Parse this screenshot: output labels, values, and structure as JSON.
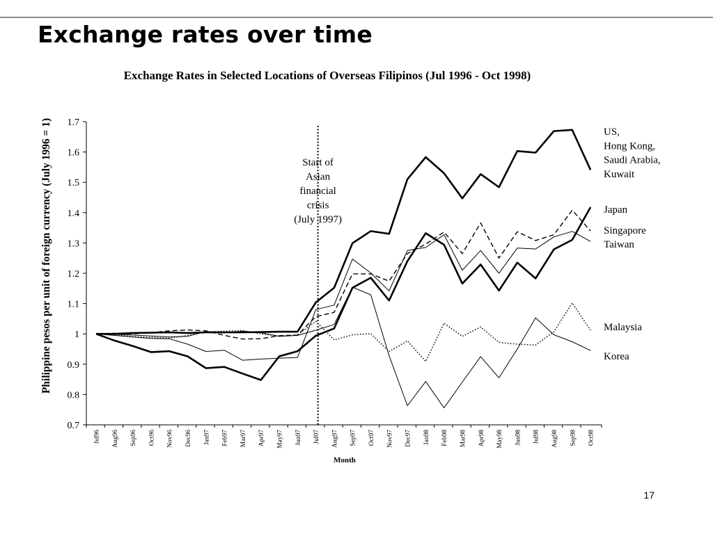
{
  "slide": {
    "title": "Exchange rates over time",
    "page_number": "17"
  },
  "chart_data": {
    "type": "line",
    "title": "Exchange Rates in Selected Locations of Overseas Filipinos (Jul 1996 - Oct 1998)",
    "xlabel": "Month",
    "ylabel": "Philippine pesos per unit of foreign currency (July 1996 = 1)",
    "ylim": [
      0.7,
      1.7
    ],
    "yticks": [
      "0.7",
      "0.8",
      "0.9",
      "1",
      "1.1",
      "1.2",
      "1.3",
      "1.4",
      "1.5",
      "1.6",
      "1.7"
    ],
    "grid": false,
    "categories": [
      "Jul96",
      "Aug96",
      "Sep96",
      "Oct96",
      "Nov96",
      "Dec96",
      "Jan97",
      "Feb97",
      "Mar97",
      "Apr97",
      "May97",
      "Jun97",
      "Jul97",
      "Aug97",
      "Sep97",
      "Oct97",
      "Nov97",
      "Dec97",
      "Jan98",
      "Feb98",
      "Mar98",
      "Apr98",
      "May98",
      "Jun98",
      "Jul98",
      "Aug98",
      "Sep98",
      "Oct98"
    ],
    "annotation": {
      "category": "Jul97",
      "lines": [
        "Start of",
        "Asian",
        "financial",
        "crisis",
        "(July 1997)"
      ]
    },
    "series": [
      {
        "name": "US, Hong Kong, Saudi Arabia, Kuwait",
        "label_lines": [
          "US,",
          "Hong Kong,",
          "Saudi Arabia,",
          "Kuwait"
        ],
        "style": "thick",
        "values": [
          1.0,
          1.0,
          1.003,
          1.004,
          1.005,
          1.003,
          1.005,
          1.005,
          1.005,
          1.006,
          1.007,
          1.007,
          1.104,
          1.152,
          1.299,
          1.339,
          1.33,
          1.51,
          1.583,
          1.53,
          1.447,
          1.527,
          1.484,
          1.603,
          1.598,
          1.669,
          1.673,
          1.541
        ]
      },
      {
        "name": "Japan",
        "label_lines": [
          "Japan"
        ],
        "style": "thick",
        "values": [
          1.0,
          0.978,
          0.96,
          0.94,
          0.943,
          0.926,
          0.887,
          0.891,
          0.869,
          0.848,
          0.926,
          0.943,
          0.994,
          1.018,
          1.152,
          1.185,
          1.11,
          1.24,
          1.332,
          1.294,
          1.166,
          1.229,
          1.143,
          1.235,
          1.183,
          1.279,
          1.31,
          1.418
        ]
      },
      {
        "name": "Singapore",
        "label_lines": [
          "Singapore"
        ],
        "style": "dashed",
        "values": [
          1.0,
          1.002,
          1.0,
          1.004,
          1.01,
          1.013,
          1.01,
          0.995,
          0.983,
          0.984,
          0.994,
          0.996,
          1.057,
          1.071,
          1.198,
          1.198,
          1.174,
          1.265,
          1.296,
          1.336,
          1.265,
          1.366,
          1.25,
          1.337,
          1.308,
          1.327,
          1.408,
          1.34
        ]
      },
      {
        "name": "Taiwan",
        "label_lines": [
          "Taiwan"
        ],
        "style": "thin",
        "values": [
          1.0,
          0.995,
          0.99,
          0.985,
          0.984,
          0.966,
          0.942,
          0.946,
          0.913,
          0.917,
          0.92,
          0.922,
          1.08,
          1.095,
          1.247,
          1.201,
          1.142,
          1.275,
          1.285,
          1.327,
          1.21,
          1.275,
          1.2,
          1.283,
          1.28,
          1.32,
          1.338,
          1.305
        ]
      },
      {
        "name": "Malaysia",
        "label_lines": [
          "Malaysia"
        ],
        "style": "dotted",
        "values": [
          1.0,
          0.998,
          0.991,
          0.988,
          0.986,
          0.995,
          1.007,
          1.009,
          1.011,
          1.0,
          0.993,
          0.996,
          1.042,
          0.98,
          0.997,
          1.001,
          0.942,
          0.977,
          0.909,
          1.035,
          0.992,
          1.023,
          0.972,
          0.966,
          0.963,
          1.007,
          1.102,
          1.012
        ]
      },
      {
        "name": "Korea",
        "label_lines": [
          "Korea"
        ],
        "style": "thin",
        "values": [
          1.0,
          0.999,
          0.996,
          0.993,
          0.99,
          0.992,
          1.008,
          1.003,
          1.009,
          1.004,
          0.992,
          0.995,
          1.012,
          1.031,
          1.154,
          1.129,
          0.928,
          0.763,
          0.843,
          0.756,
          0.841,
          0.925,
          0.855,
          0.95,
          1.053,
          0.997,
          0.974,
          0.945
        ]
      }
    ]
  }
}
